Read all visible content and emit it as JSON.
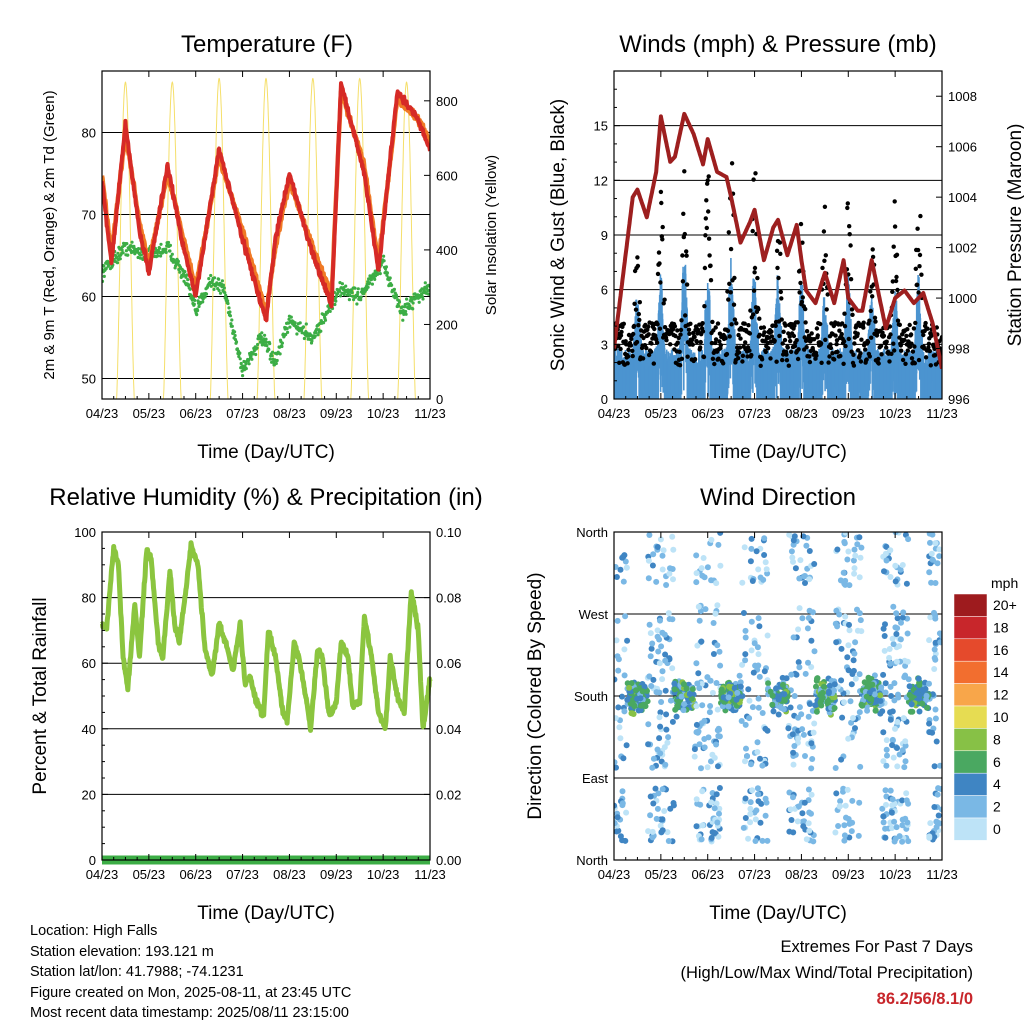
{
  "chart_data": [
    {
      "type": "line",
      "title": "Temperature (F)",
      "xlabel": "Time (Day/UTC)",
      "ylabel": "2m & 9m T (Red, Orange) & 2m Td (Green)",
      "ylabel_right": "Solar Insolation (Yellow)",
      "x_ticks": [
        "04/23",
        "05/23",
        "06/23",
        "07/23",
        "08/23",
        "09/23",
        "10/23",
        "11/23"
      ],
      "ylim": [
        47.5,
        87.5
      ],
      "y_ticks": [
        50,
        60,
        70,
        80
      ],
      "ylim_right": [
        0,
        880
      ],
      "y_ticks_right": [
        0,
        200,
        400,
        600,
        800
      ],
      "colors": {
        "t2m": "#d62a26",
        "t9m": "#f07a25",
        "td": "#3cad45",
        "solar": "#f5df6a"
      },
      "series": [
        {
          "key": "t2m",
          "axis": "left",
          "x": [
            0,
            0.2,
            0.5,
            0.8,
            1.0,
            1.4,
            1.7,
            2.0,
            2.5,
            3.0,
            3.5,
            3.7,
            4.0,
            4.5,
            4.9,
            5.1,
            5.6,
            5.9,
            6.3,
            6.7,
            7.0
          ],
          "values": [
            74,
            64,
            81,
            68,
            63,
            76,
            67,
            60,
            78,
            67,
            57,
            67,
            75,
            65,
            59,
            86,
            75,
            63,
            85,
            82,
            78
          ]
        },
        {
          "key": "t9m",
          "axis": "left",
          "x": [
            0,
            0.2,
            0.5,
            0.8,
            1.0,
            1.4,
            1.7,
            2.0,
            2.5,
            3.0,
            3.5,
            3.7,
            4.0,
            4.5,
            4.9,
            5.1,
            5.6,
            5.9,
            6.3,
            6.7,
            7.0
          ],
          "values": [
            75,
            65,
            80,
            69,
            64,
            75,
            68,
            61,
            77,
            68,
            58,
            66,
            74,
            66,
            60,
            85,
            76,
            64,
            84,
            82,
            79
          ]
        },
        {
          "key": "td",
          "axis": "left",
          "x": [
            0,
            0.5,
            1.0,
            1.4,
            1.8,
            2.0,
            2.3,
            2.6,
            3.0,
            3.4,
            3.7,
            4.0,
            4.5,
            4.9,
            5.1,
            5.5,
            6.0,
            6.4,
            6.7,
            7.0
          ],
          "values": [
            63,
            66,
            65,
            66,
            62,
            58,
            62,
            61,
            51,
            55,
            52,
            57,
            55,
            59,
            61,
            60,
            64,
            58,
            60,
            61
          ]
        },
        {
          "key": "solar",
          "axis": "right",
          "x": [
            0.5,
            1.5,
            2.5,
            3.5,
            4.5,
            5.5,
            6.5
          ],
          "values": [
            850,
            850,
            860,
            860,
            860,
            860,
            850
          ]
        }
      ],
      "grid": "horizontal"
    },
    {
      "type": "scatter",
      "title": "Winds (mph) & Pressure (mb)",
      "xlabel": "Time (Day/UTC)",
      "ylabel": "Sonic Wind & Gust (Blue, Black)",
      "ylabel_right": "Station Pressure (Maroon)",
      "x_ticks": [
        "04/23",
        "05/23",
        "06/23",
        "07/23",
        "08/23",
        "09/23",
        "10/23",
        "11/23"
      ],
      "ylim": [
        0,
        18
      ],
      "y_ticks": [
        0,
        3,
        6,
        9,
        12,
        15
      ],
      "ylim_right": [
        996,
        1009
      ],
      "y_ticks_right": [
        996,
        998,
        1000,
        1002,
        1004,
        1006,
        1008
      ],
      "colors": {
        "wind": "#4c94d0",
        "gust": "#000000",
        "pressure": "#9d1f1f"
      },
      "series": [
        {
          "key": "pressure",
          "axis": "right",
          "x": [
            0,
            0.2,
            0.4,
            0.5,
            0.7,
            0.9,
            1.0,
            1.2,
            1.3,
            1.5,
            1.7,
            1.9,
            2.0,
            2.2,
            2.4,
            2.5,
            2.7,
            2.9,
            3.0,
            3.2,
            3.4,
            3.5,
            3.7,
            3.9,
            4.0,
            4.1,
            4.3,
            4.5,
            4.7,
            4.9,
            5.0,
            5.2,
            5.3,
            5.5,
            5.8,
            6.0,
            6.2,
            6.4,
            6.6,
            6.8,
            7.0
          ],
          "values": [
            998,
            1001,
            1004,
            1004.3,
            1003.2,
            1005,
            1007.2,
            1005.4,
            1005.6,
            1007.3,
            1006.5,
            1005.3,
            1006.3,
            1005,
            1004.8,
            1004,
            1002.2,
            1003,
            1003.5,
            1001.5,
            1002.8,
            1003.1,
            1001.7,
            1002.9,
            1001.5,
            1000.3,
            999.8,
            1001,
            999.8,
            1001.5,
            1000,
            999.5,
            999.5,
            1001.5,
            998.8,
            1000,
            1000.3,
            999.8,
            1000.2,
            999,
            997.2
          ]
        }
      ],
      "gust_peaks": [
        {
          "x": 0.5,
          "gust": 10,
          "wind": 6
        },
        {
          "x": 1.0,
          "gust": 12,
          "wind": 7
        },
        {
          "x": 1.5,
          "gust": 13,
          "wind": 8
        },
        {
          "x": 2.0,
          "gust": 13,
          "wind": 7
        },
        {
          "x": 2.5,
          "gust": 16,
          "wind": 8
        },
        {
          "x": 3.0,
          "gust": 14.5,
          "wind": 8
        },
        {
          "x": 3.5,
          "gust": 12,
          "wind": 7
        },
        {
          "x": 4.0,
          "gust": 11,
          "wind": 7
        },
        {
          "x": 4.5,
          "gust": 11,
          "wind": 6
        },
        {
          "x": 5.0,
          "gust": 12,
          "wind": 7
        },
        {
          "x": 5.5,
          "gust": 10,
          "wind": 6
        },
        {
          "x": 6.0,
          "gust": 11,
          "wind": 6
        },
        {
          "x": 6.5,
          "gust": 13,
          "wind": 7
        }
      ],
      "grid": "horizontal"
    },
    {
      "type": "line",
      "title": "Relative Humidity (%) & Precipitation (in)",
      "xlabel": "Time (Day/UTC)",
      "ylabel": "Percent & Total Rainfall",
      "x_ticks": [
        "04/23",
        "05/23",
        "06/23",
        "07/23",
        "08/23",
        "09/23",
        "10/23",
        "11/23"
      ],
      "ylim": [
        0,
        100
      ],
      "y_ticks": [
        0,
        20,
        40,
        60,
        80,
        100
      ],
      "ylim_right": [
        0,
        0.1
      ],
      "y_ticks_right": [
        "0.00",
        "0.02",
        "0.04",
        "0.06",
        "0.08",
        "0.10"
      ],
      "colors": {
        "rh": "#8bc53f",
        "precip": "#3cad45"
      },
      "series": [
        {
          "key": "rh",
          "axis": "left",
          "x": [
            0,
            0.1,
            0.25,
            0.35,
            0.45,
            0.55,
            0.7,
            0.8,
            0.95,
            1.05,
            1.2,
            1.3,
            1.45,
            1.55,
            1.65,
            1.75,
            1.9,
            2.05,
            2.2,
            2.35,
            2.5,
            2.65,
            2.8,
            2.95,
            3.05,
            3.15,
            3.3,
            3.45,
            3.55,
            3.7,
            3.85,
            3.95,
            4.1,
            4.2,
            4.35,
            4.45,
            4.6,
            4.7,
            4.85,
            5.0,
            5.1,
            5.25,
            5.35,
            5.5,
            5.6,
            5.75,
            5.9,
            6.05,
            6.15,
            6.3,
            6.45,
            6.6,
            6.75,
            6.85,
            7.0
          ],
          "values": [
            72,
            71,
            95,
            90,
            62,
            52,
            78,
            62,
            94,
            92,
            66,
            62,
            88,
            72,
            66,
            78,
            96,
            90,
            64,
            56,
            72,
            66,
            58,
            72,
            54,
            56,
            48,
            44,
            70,
            62,
            46,
            42,
            66,
            62,
            50,
            40,
            64,
            62,
            44,
            48,
            66,
            62,
            47,
            48,
            74,
            62,
            45,
            40,
            62,
            50,
            45,
            82,
            70,
            40,
            55
          ]
        },
        {
          "key": "precip",
          "axis": "right",
          "x": [
            0,
            7
          ],
          "values": [
            0,
            0
          ]
        }
      ],
      "grid": "horizontal"
    },
    {
      "type": "scatter",
      "title": "Wind Direction",
      "xlabel": "Time (Day/UTC)",
      "ylabel": "Direction (Colored By Speed)",
      "x_ticks": [
        "04/23",
        "05/23",
        "06/23",
        "07/23",
        "08/23",
        "09/23",
        "10/23",
        "11/23"
      ],
      "y_ticks": [
        "North",
        "East",
        "South",
        "West",
        "North"
      ],
      "ylim": [
        0,
        360
      ],
      "main_direction_deg": 180,
      "colorbar": {
        "unit": "mph",
        "labels": [
          "20+",
          "18",
          "16",
          "14",
          "12",
          "10",
          "8",
          "6",
          "4",
          "2",
          "0"
        ],
        "colors": [
          "#9e1b1e",
          "#c8262b",
          "#e54a2c",
          "#f26e2f",
          "#f8a64a",
          "#e6dc52",
          "#87c146",
          "#4aa861",
          "#3f85c3",
          "#7ab8e5",
          "#bde3f7"
        ]
      },
      "grid": "horizontal"
    }
  ],
  "info": {
    "location": "Location: High Falls",
    "elevation": "Station elevation: 193.121 m",
    "latlon": "Station lat/lon: 41.7988; -74.1231",
    "created": "Figure created on Mon, 2025-08-11, at 23:45 UTC",
    "recent": "Most recent data timestamp: 2025/08/11 23:15:00"
  },
  "extremes": {
    "title": "Extremes For Past 7 Days",
    "subtitle": "(High/Low/Max Wind/Total Precipitation)",
    "value": "86.2/56/8.1/0"
  }
}
